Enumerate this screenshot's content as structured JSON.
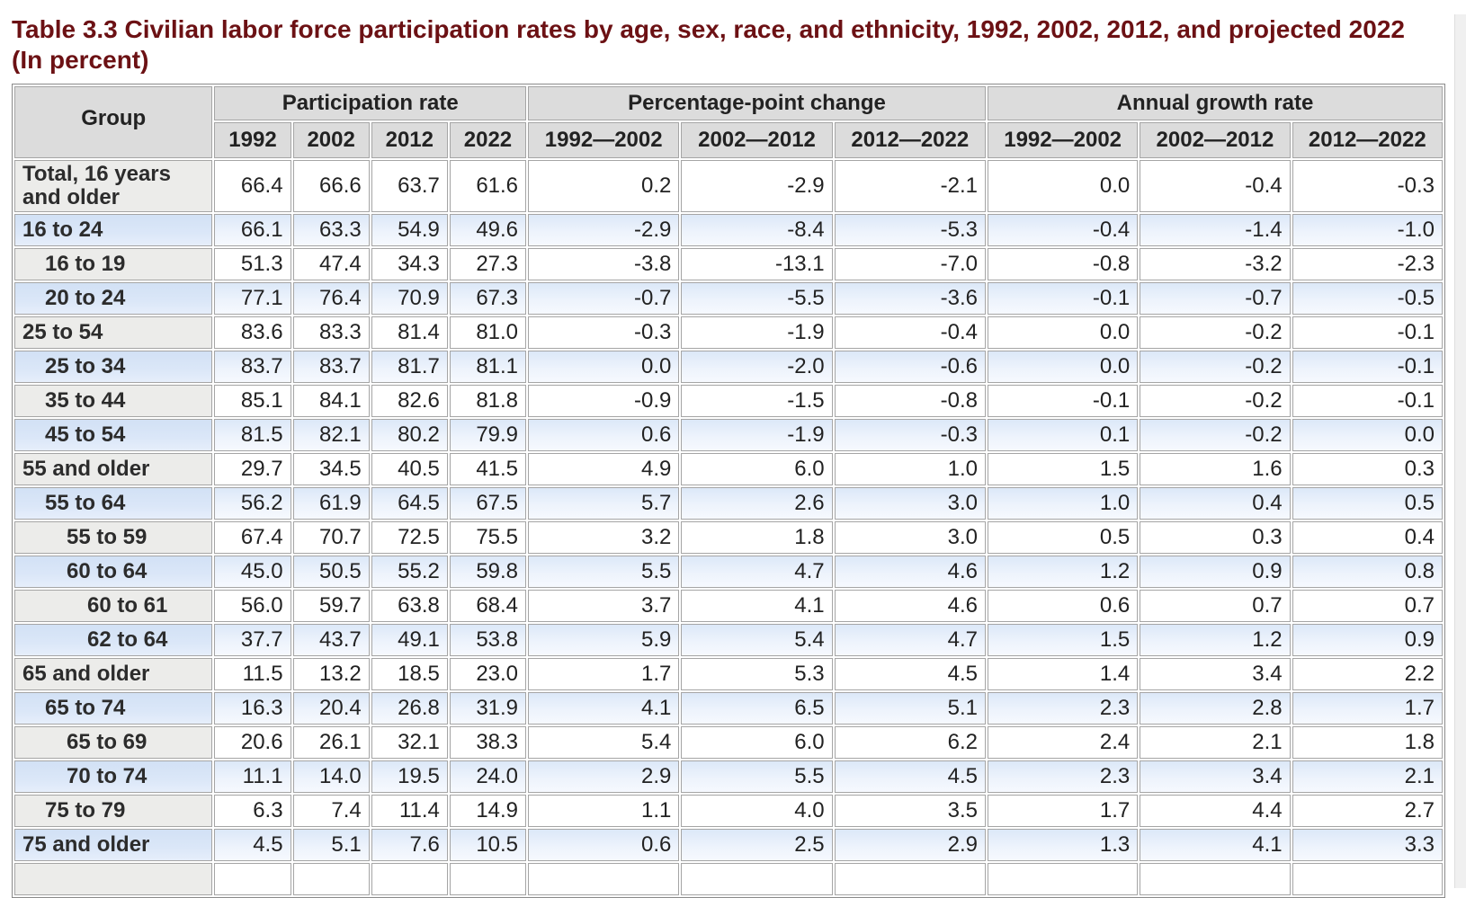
{
  "title": {
    "line1": "Table 3.3 Civilian labor force participation rates by age, sex, race, and ethnicity, 1992, 2002, 2012, and projected 2022",
    "line2": "(In percent)"
  },
  "table": {
    "group_header": "Group",
    "col_groups": [
      {
        "label": "Participation rate",
        "cols": [
          "1992",
          "2002",
          "2012",
          "2022"
        ]
      },
      {
        "label": "Percentage-point change",
        "cols": [
          "1992—2002",
          "2002—2012",
          "2012—2022"
        ]
      },
      {
        "label": "Annual growth rate",
        "cols": [
          "1992—2002",
          "2002—2012",
          "2012—2022"
        ]
      }
    ],
    "rows": [
      {
        "group": "Total, 16 years and older",
        "indent": 0,
        "values": [
          "66.4",
          "66.6",
          "63.7",
          "61.6",
          "0.2",
          "-2.9",
          "-2.1",
          "0.0",
          "-0.4",
          "-0.3"
        ]
      },
      {
        "group": "16 to 24",
        "indent": 0,
        "values": [
          "66.1",
          "63.3",
          "54.9",
          "49.6",
          "-2.9",
          "-8.4",
          "-5.3",
          "-0.4",
          "-1.4",
          "-1.0"
        ]
      },
      {
        "group": "16 to 19",
        "indent": 1,
        "values": [
          "51.3",
          "47.4",
          "34.3",
          "27.3",
          "-3.8",
          "-13.1",
          "-7.0",
          "-0.8",
          "-3.2",
          "-2.3"
        ]
      },
      {
        "group": "20 to 24",
        "indent": 1,
        "values": [
          "77.1",
          "76.4",
          "70.9",
          "67.3",
          "-0.7",
          "-5.5",
          "-3.6",
          "-0.1",
          "-0.7",
          "-0.5"
        ]
      },
      {
        "group": "25 to 54",
        "indent": 0,
        "values": [
          "83.6",
          "83.3",
          "81.4",
          "81.0",
          "-0.3",
          "-1.9",
          "-0.4",
          "0.0",
          "-0.2",
          "-0.1"
        ]
      },
      {
        "group": "25 to 34",
        "indent": 1,
        "values": [
          "83.7",
          "83.7",
          "81.7",
          "81.1",
          "0.0",
          "-2.0",
          "-0.6",
          "0.0",
          "-0.2",
          "-0.1"
        ]
      },
      {
        "group": "35 to 44",
        "indent": 1,
        "values": [
          "85.1",
          "84.1",
          "82.6",
          "81.8",
          "-0.9",
          "-1.5",
          "-0.8",
          "-0.1",
          "-0.2",
          "-0.1"
        ]
      },
      {
        "group": "45 to 54",
        "indent": 1,
        "values": [
          "81.5",
          "82.1",
          "80.2",
          "79.9",
          "0.6",
          "-1.9",
          "-0.3",
          "0.1",
          "-0.2",
          "0.0"
        ]
      },
      {
        "group": "55 and older",
        "indent": 0,
        "values": [
          "29.7",
          "34.5",
          "40.5",
          "41.5",
          "4.9",
          "6.0",
          "1.0",
          "1.5",
          "1.6",
          "0.3"
        ]
      },
      {
        "group": "55 to 64",
        "indent": 1,
        "values": [
          "56.2",
          "61.9",
          "64.5",
          "67.5",
          "5.7",
          "2.6",
          "3.0",
          "1.0",
          "0.4",
          "0.5"
        ]
      },
      {
        "group": "55 to 59",
        "indent": 2,
        "values": [
          "67.4",
          "70.7",
          "72.5",
          "75.5",
          "3.2",
          "1.8",
          "3.0",
          "0.5",
          "0.3",
          "0.4"
        ]
      },
      {
        "group": "60 to 64",
        "indent": 2,
        "values": [
          "45.0",
          "50.5",
          "55.2",
          "59.8",
          "5.5",
          "4.7",
          "4.6",
          "1.2",
          "0.9",
          "0.8"
        ]
      },
      {
        "group": "60 to 61",
        "indent": 3,
        "values": [
          "56.0",
          "59.7",
          "63.8",
          "68.4",
          "3.7",
          "4.1",
          "4.6",
          "0.6",
          "0.7",
          "0.7"
        ]
      },
      {
        "group": "62 to 64",
        "indent": 3,
        "values": [
          "37.7",
          "43.7",
          "49.1",
          "53.8",
          "5.9",
          "5.4",
          "4.7",
          "1.5",
          "1.2",
          "0.9"
        ]
      },
      {
        "group": "65 and older",
        "indent": 0,
        "values": [
          "11.5",
          "13.2",
          "18.5",
          "23.0",
          "1.7",
          "5.3",
          "4.5",
          "1.4",
          "3.4",
          "2.2"
        ]
      },
      {
        "group": "65 to 74",
        "indent": 1,
        "values": [
          "16.3",
          "20.4",
          "26.8",
          "31.9",
          "4.1",
          "6.5",
          "5.1",
          "2.3",
          "2.8",
          "1.7"
        ]
      },
      {
        "group": "65 to 69",
        "indent": 2,
        "values": [
          "20.6",
          "26.1",
          "32.1",
          "38.3",
          "5.4",
          "6.0",
          "6.2",
          "2.4",
          "2.1",
          "1.8"
        ]
      },
      {
        "group": "70 to 74",
        "indent": 2,
        "values": [
          "11.1",
          "14.0",
          "19.5",
          "24.0",
          "2.9",
          "5.5",
          "4.5",
          "2.3",
          "3.4",
          "2.1"
        ]
      },
      {
        "group": "75 to 79",
        "indent": 1,
        "values": [
          "6.3",
          "7.4",
          "11.4",
          "14.9",
          "1.1",
          "4.0",
          "3.5",
          "1.7",
          "4.4",
          "2.7"
        ]
      },
      {
        "group": "75 and older",
        "indent": 0,
        "values": [
          "4.5",
          "5.1",
          "7.6",
          "10.5",
          "0.6",
          "2.5",
          "2.9",
          "1.3",
          "4.1",
          "3.3"
        ]
      }
    ]
  }
}
